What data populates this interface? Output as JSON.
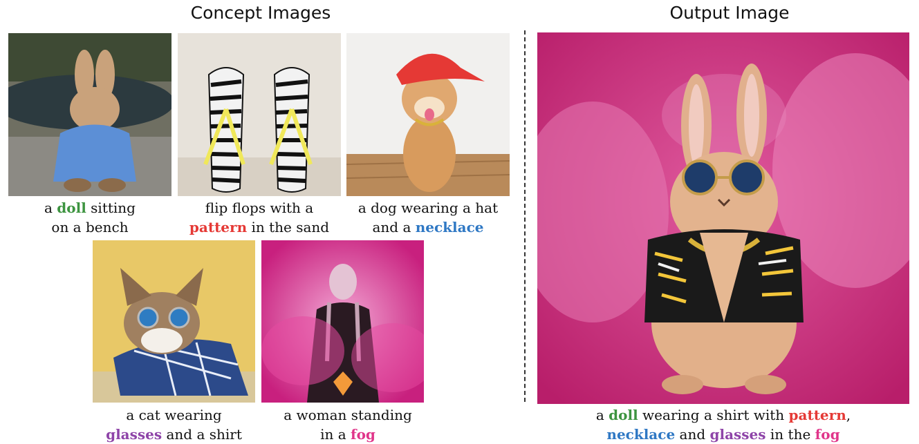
{
  "headings": {
    "concept": "Concept Images",
    "output": "Output Image"
  },
  "concepts": [
    {
      "line1_pre": "a ",
      "line1_kw": "doll",
      "line1_post": " sitting",
      "line2_pre": "on a bench",
      "line2_kw": "",
      "line2_post": ""
    },
    {
      "line1_pre": "flip flops with a",
      "line1_kw": "",
      "line1_post": "",
      "line2_pre": "",
      "line2_kw": "pattern",
      "line2_post": " in the sand"
    },
    {
      "line1_pre": "a dog wearing a hat",
      "line1_kw": "",
      "line1_post": "",
      "line2_pre": "and a ",
      "line2_kw": "necklace",
      "line2_post": ""
    },
    {
      "line1_pre": "a cat wearing",
      "line1_kw": "",
      "line1_post": "",
      "line2_pre": "",
      "line2_kw": "glasses",
      "line2_post": " and a shirt"
    },
    {
      "line1_pre": "a woman standing",
      "line1_kw": "",
      "line1_post": "",
      "line2_pre": "in a ",
      "line2_kw": "fog",
      "line2_post": ""
    }
  ],
  "output": {
    "line1_pre": "a ",
    "kw_doll": "doll",
    "line1_mid": " wearing a shirt with ",
    "kw_pattern": "pattern",
    "line1_post": ",",
    "kw_necklace": "necklace",
    "line2_mid": " and ",
    "kw_glasses": "glasses",
    "line2_mid2": " in the ",
    "kw_fog": "fog"
  },
  "colors": {
    "doll": "#3d9440",
    "pattern": "#e53935",
    "necklace": "#2f78c4",
    "glasses": "#8e44a8",
    "fog": "#e0358a"
  }
}
